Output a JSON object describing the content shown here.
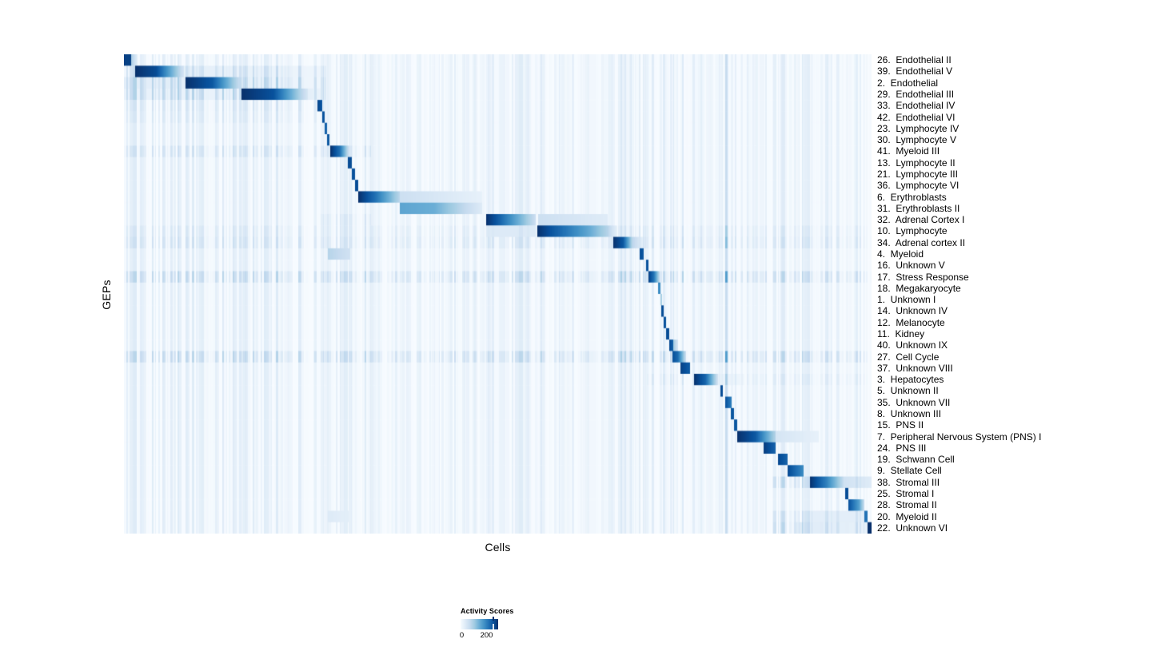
{
  "figure": {
    "y_axis_label": "GEPs",
    "x_axis_label": "Cells"
  },
  "legend": {
    "title": "Activity Scores",
    "tick_labels": [
      "0",
      "200"
    ],
    "min_score": 0,
    "max_score": 230,
    "tick_value": 200
  },
  "colors": {
    "colormap_name": "Blues",
    "colormap_stops": [
      "#f7fbff",
      "#deebf7",
      "#c6dbef",
      "#9ecae1",
      "#6baed6",
      "#4292c6",
      "#2171b5",
      "#08519c",
      "#08306b"
    ],
    "page_background": "#ffffff",
    "text": "#000000"
  },
  "chart_data": {
    "type": "heatmap",
    "title": "",
    "xlabel": "Cells",
    "ylabel": "GEPs",
    "value_label": "Activity Scores",
    "value_range": [
      0,
      230
    ],
    "legend_tick_values": [
      0,
      200
    ],
    "x_axis_description": "individual cells ordered by cell-type cluster (no tick labels shown)",
    "rows": [
      {
        "label": "26.  Endothelial II",
        "segments": [
          [
            0.0,
            0.009,
            215,
            215
          ],
          [
            0.009,
            0.018,
            80,
            20
          ]
        ]
      },
      {
        "label": "39.  Endothelial V",
        "segments": [
          [
            0.014,
            0.043,
            230,
            205
          ],
          [
            0.043,
            0.08,
            205,
            40
          ],
          [
            0.08,
            0.27,
            22,
            10
          ]
        ],
        "noise_boost": [
          [
            0,
            0.27,
            2.0
          ]
        ]
      },
      {
        "label": "2.  Endothelial",
        "segments": [
          [
            0.0,
            0.082,
            23,
            23
          ],
          [
            0.082,
            0.118,
            230,
            195
          ],
          [
            0.118,
            0.155,
            195,
            50
          ],
          [
            0.155,
            0.27,
            18,
            9
          ]
        ],
        "noise_boost": [
          [
            0,
            0.27,
            2.6
          ]
        ]
      },
      {
        "label": "29.  Endothelial III",
        "segments": [
          [
            0.0,
            0.157,
            16,
            16
          ],
          [
            0.157,
            0.2,
            230,
            200
          ],
          [
            0.2,
            0.246,
            200,
            35
          ],
          [
            0.246,
            0.27,
            23,
            11
          ]
        ],
        "noise_boost": [
          [
            0,
            0.27,
            2.6
          ]
        ]
      },
      {
        "label": "33.  Endothelial IV",
        "segments": [
          [
            0.2588,
            0.2652,
            210,
            195
          ]
        ],
        "noise_boost": [
          [
            0,
            0.27,
            1.6
          ]
        ]
      },
      {
        "label": "42.  Endothelial VI",
        "segments": [
          [
            0.2652,
            0.2684,
            200,
            200
          ]
        ],
        "noise_boost": [
          [
            0,
            0.27,
            1.4
          ]
        ]
      },
      {
        "label": "23.  Lymphocyte IV",
        "segments": [
          [
            0.2684,
            0.2716,
            185,
            185
          ]
        ]
      },
      {
        "label": "30.  Lymphocyte V",
        "segments": [
          [
            0.2716,
            0.2748,
            195,
            195
          ]
        ]
      },
      {
        "label": "41.  Myeloid III",
        "segments": [
          [
            0.2759,
            0.289,
            230,
            170
          ],
          [
            0.289,
            0.302,
            170,
            35
          ]
        ],
        "noise_boost": [
          [
            0,
            0.33,
            1.8
          ]
        ]
      },
      {
        "label": "13.  Lymphocyte II",
        "segments": [
          [
            0.2995,
            0.3048,
            205,
            205
          ]
        ]
      },
      {
        "label": "21.  Lymphocyte III",
        "segments": [
          [
            0.3048,
            0.3091,
            200,
            200
          ]
        ]
      },
      {
        "label": "36.  Lymphocyte VI",
        "segments": [
          [
            0.3091,
            0.3134,
            205,
            205
          ]
        ]
      },
      {
        "label": "6.  Erythroblasts",
        "segments": [
          [
            0.3134,
            0.337,
            230,
            170
          ],
          [
            0.337,
            0.369,
            170,
            65
          ],
          [
            0.369,
            0.479,
            50,
            18
          ]
        ]
      },
      {
        "label": "31.  Erythroblasts II",
        "segments": [
          [
            0.369,
            0.415,
            125,
            115
          ],
          [
            0.415,
            0.479,
            115,
            28
          ]
        ]
      },
      {
        "label": "32.  Adrenal Cortex I",
        "segments": [
          [
            0.4845,
            0.503,
            230,
            185
          ],
          [
            0.503,
            0.551,
            185,
            50
          ],
          [
            0.554,
            0.647,
            50,
            28
          ]
        ],
        "noise_boost": [
          [
            0.26,
            0.33,
            1.5
          ]
        ]
      },
      {
        "label": "10.  Lymphocyte",
        "segments": [
          [
            0.4845,
            0.551,
            30,
            30
          ],
          [
            0.553,
            0.567,
            230,
            205
          ],
          [
            0.567,
            0.62,
            205,
            125
          ],
          [
            0.62,
            0.647,
            125,
            70
          ],
          [
            0.647,
            0.66,
            70,
            18
          ]
        ],
        "noise_boost": [
          [
            0,
            1,
            1.5
          ]
        ]
      },
      {
        "label": "34.  Adrenal cortex II",
        "segments": [
          [
            0.6545,
            0.668,
            230,
            195
          ],
          [
            0.668,
            0.679,
            195,
            80
          ],
          [
            0.679,
            0.695,
            70,
            18
          ]
        ],
        "noise_boost": [
          [
            0,
            1,
            1.8
          ]
        ]
      },
      {
        "label": "4.  Myeloid",
        "segments": [
          [
            0.272,
            0.302,
            70,
            45
          ],
          [
            0.6898,
            0.6952,
            205,
            195
          ]
        ]
      },
      {
        "label": "16.  Unknown V",
        "segments": [
          [
            0.6984,
            0.7016,
            200,
            200
          ]
        ]
      },
      {
        "label": "17.  Stress Response",
        "segments": [
          [
            0.7016,
            0.7091,
            220,
            170
          ],
          [
            0.7091,
            0.7166,
            170,
            60
          ]
        ],
        "noise_boost": [
          [
            0,
            1,
            2.4
          ]
        ]
      },
      {
        "label": "18.  Megakaryocyte",
        "segments": [
          [
            0.7144,
            0.7176,
            150,
            150
          ]
        ]
      },
      {
        "label": "1.  Unknown I",
        "segments": [
          [
            0.7176,
            0.7197,
            80,
            80
          ]
        ]
      },
      {
        "label": "14.  Unknown IV",
        "segments": [
          [
            0.7187,
            0.7219,
            205,
            205
          ]
        ]
      },
      {
        "label": "12.  Melanocyte",
        "segments": [
          [
            0.7219,
            0.7251,
            200,
            200
          ]
        ]
      },
      {
        "label": "11.  Kidney",
        "segments": [
          [
            0.7251,
            0.7294,
            205,
            205
          ]
        ]
      },
      {
        "label": "40.  Unknown IX",
        "segments": [
          [
            0.7294,
            0.7347,
            210,
            185
          ],
          [
            0.7347,
            0.7411,
            90,
            40
          ]
        ]
      },
      {
        "label": "27.  Cell Cycle",
        "segments": [
          [
            0.7337,
            0.7411,
            205,
            180
          ],
          [
            0.7411,
            0.752,
            180,
            50
          ]
        ],
        "noise_boost": [
          [
            0,
            1,
            2.4
          ]
        ]
      },
      {
        "label": "37.  Unknown VIII",
        "segments": [
          [
            0.7444,
            0.7572,
            215,
            190
          ]
        ]
      },
      {
        "label": "3.  Hepatocytes",
        "segments": [
          [
            0.7626,
            0.778,
            230,
            185
          ],
          [
            0.778,
            0.7947,
            185,
            45
          ],
          [
            0.7947,
            0.83,
            18,
            9
          ]
        ],
        "noise_boost": [
          [
            0.7,
            1,
            1.4
          ]
        ]
      },
      {
        "label": "5.  Unknown II",
        "segments": [
          [
            0.7979,
            0.8011,
            205,
            205
          ]
        ]
      },
      {
        "label": "35.  Unknown VII",
        "segments": [
          [
            0.8043,
            0.8128,
            205,
            160
          ]
        ]
      },
      {
        "label": "8.  Unknown III",
        "segments": [
          [
            0.8118,
            0.816,
            195,
            195
          ]
        ]
      },
      {
        "label": "15.  PNS II",
        "segments": [
          [
            0.816,
            0.8203,
            195,
            195
          ]
        ]
      },
      {
        "label": "7.  Peripheral Nervous System (PNS) I",
        "segments": [
          [
            0.8203,
            0.845,
            230,
            195
          ],
          [
            0.845,
            0.872,
            195,
            70
          ],
          [
            0.872,
            0.93,
            40,
            18
          ]
        ]
      },
      {
        "label": "24.  PNS III",
        "segments": [
          [
            0.8556,
            0.8717,
            220,
            185
          ]
        ]
      },
      {
        "label": "19.  Schwann Cell",
        "segments": [
          [
            0.8749,
            0.8877,
            210,
            185
          ]
        ]
      },
      {
        "label": "9.  Stellate Cell",
        "segments": [
          [
            0.8877,
            0.909,
            210,
            150
          ]
        ]
      },
      {
        "label": "38.  Stromal III",
        "segments": [
          [
            0.9176,
            0.9401,
            230,
            160
          ],
          [
            0.9401,
            0.9626,
            160,
            58
          ],
          [
            0.9626,
            1,
            46,
            28
          ]
        ],
        "noise_boost": [
          [
            0.86,
            1,
            2.4
          ]
        ]
      },
      {
        "label": "25.  Stromal I",
        "segments": [
          [
            0.9647,
            0.969,
            205,
            205
          ]
        ]
      },
      {
        "label": "28.  Stromal II",
        "segments": [
          [
            0.969,
            0.985,
            205,
            125
          ],
          [
            0.985,
            0.9904,
            115,
            58
          ]
        ]
      },
      {
        "label": "20.  Myeloid II",
        "segments": [
          [
            0.272,
            0.302,
            30,
            20
          ],
          [
            0.9176,
            0.9914,
            23,
            23
          ],
          [
            0.9914,
            0.9957,
            172,
            172
          ]
        ],
        "noise_boost": [
          [
            0.86,
            1,
            2.0
          ]
        ]
      },
      {
        "label": "22.  Unknown VI",
        "segments": [
          [
            0.9,
            0.9957,
            28,
            18
          ],
          [
            0.9957,
            1,
            230,
            230
          ]
        ],
        "noise_boost": [
          [
            0.86,
            1,
            2.4
          ]
        ]
      }
    ],
    "render": {
      "seed": 12345,
      "noise_base": 0.1,
      "noise_skew": 1.8,
      "noise_bands": [
        [
          0,
          0.27,
          0.13
        ],
        [
          0.26,
          0.33,
          0.12
        ],
        [
          0.48,
          0.7,
          0.12
        ],
        [
          0.655,
          0.684,
          0.15
        ],
        [
          0.7,
          0.76,
          0.13
        ],
        [
          0.802,
          0.808,
          0.25
        ],
        [
          0.88,
          1,
          0.13
        ]
      ]
    }
  }
}
